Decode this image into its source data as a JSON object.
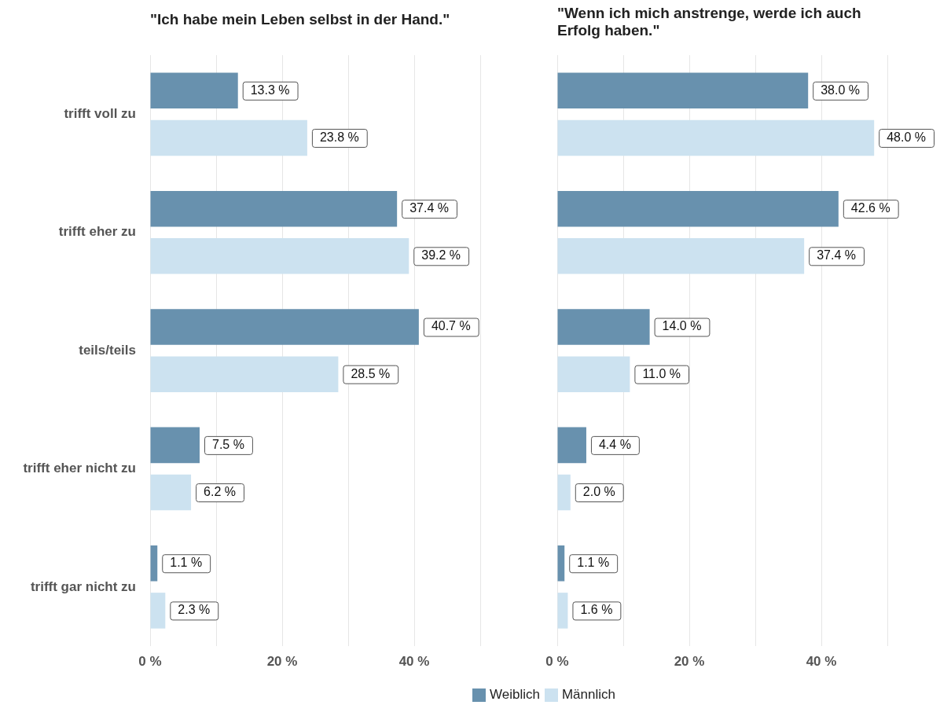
{
  "chart_data": [
    {
      "type": "bar",
      "orientation": "horizontal",
      "title": "\"Ich habe mein Leben selbst in der Hand.\"",
      "categories": [
        "trifft voll zu",
        "trifft eher zu",
        "teils/teils",
        "trifft eher nicht zu",
        "trifft gar nicht zu"
      ],
      "series": [
        {
          "name": "Weiblich",
          "color": "#6891ae",
          "values": [
            13.3,
            37.4,
            40.7,
            7.5,
            1.1
          ],
          "value_labels": [
            "13.3 %",
            "37.4 %",
            "40.7 %",
            "7.5 %",
            "1.1 %"
          ]
        },
        {
          "name": "Männlich",
          "color": "#cce2f0",
          "values": [
            23.8,
            39.2,
            28.5,
            6.2,
            2.3
          ],
          "value_labels": [
            "23.8 %",
            "39.2 %",
            "28.5 %",
            "6.2 %",
            "2.3 %"
          ]
        }
      ],
      "xlim": [
        0,
        50
      ],
      "xticks": [
        {
          "value": 0,
          "label": "0 %"
        },
        {
          "value": 10,
          "label": null
        },
        {
          "value": 20,
          "label": "20 %"
        },
        {
          "value": 30,
          "label": null
        },
        {
          "value": 40,
          "label": "40 %"
        },
        {
          "value": 50,
          "label": null
        }
      ],
      "grid": "x",
      "legend": "bottom"
    },
    {
      "type": "bar",
      "orientation": "horizontal",
      "title": "\"Wenn ich mich anstrenge, werde ich auch Erfolg haben.\"",
      "categories": [
        null,
        null,
        null,
        null,
        null
      ],
      "series": [
        {
          "color": "#6891ae",
          "values": [
            38.0,
            42.6,
            14.0,
            4.4,
            1.1
          ],
          "value_labels": [
            "38.0 %",
            "42.6 %",
            "14.0 %",
            "4.4 %",
            "1.1 %"
          ]
        },
        {
          "color": "#cce2f0",
          "values": [
            48.0,
            37.4,
            11.0,
            2.0,
            1.6
          ],
          "value_labels": [
            "48.0 %",
            "37.4 %",
            "11.0 %",
            "2.0 %",
            "1.6 %"
          ]
        }
      ],
      "xlim": [
        0,
        50
      ],
      "xticks": [
        {
          "value": 0,
          "label": "0 %"
        },
        {
          "value": 10,
          "label": null
        },
        {
          "value": 20,
          "label": "20 %"
        },
        {
          "value": 30,
          "label": null
        },
        {
          "value": 40,
          "label": "40 %"
        },
        {
          "value": 50,
          "label": null
        }
      ],
      "grid": "x"
    }
  ]
}
